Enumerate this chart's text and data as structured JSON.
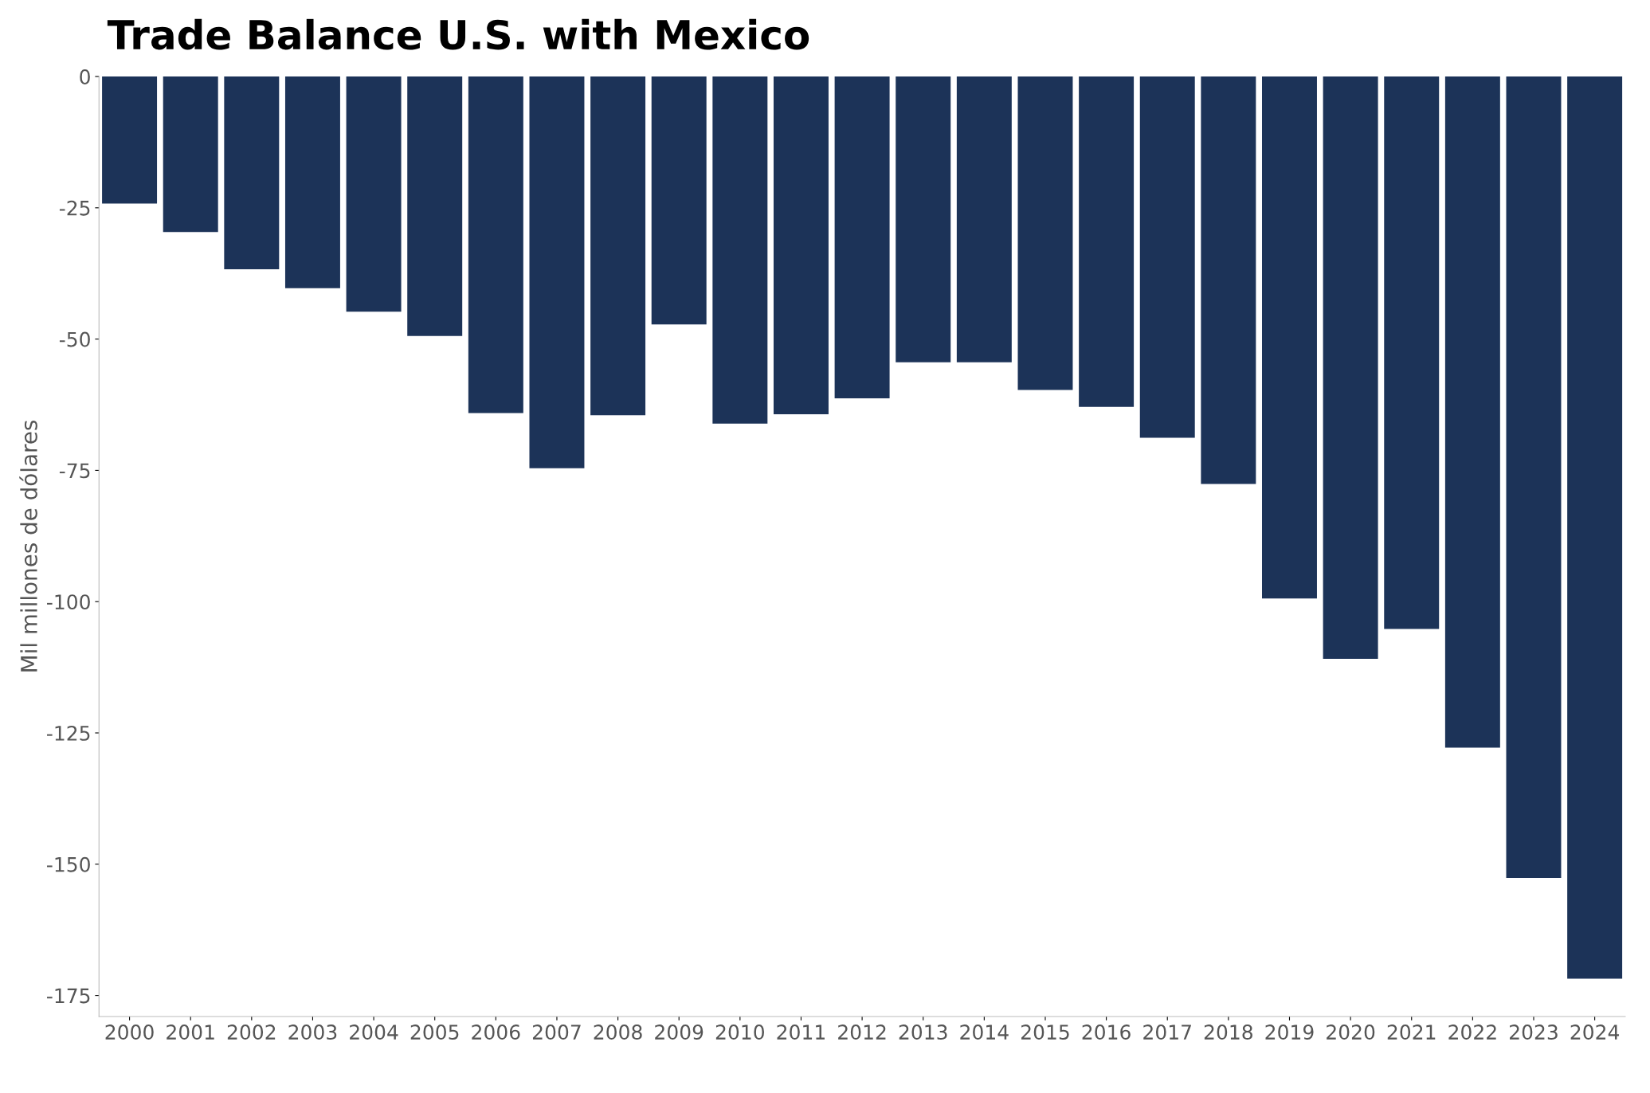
{
  "chart_data": {
    "type": "bar",
    "title": "Trade Balance U.S. with Mexico",
    "ylabel": "Mil millones de dólares",
    "categories": [
      "2000",
      "2001",
      "2002",
      "2003",
      "2004",
      "2005",
      "2006",
      "2007",
      "2008",
      "2009",
      "2010",
      "2011",
      "2012",
      "2013",
      "2014",
      "2015",
      "2016",
      "2017",
      "2018",
      "2019",
      "2020",
      "2021",
      "2022",
      "2023",
      "2024"
    ],
    "values": [
      -24.2,
      -29.6,
      -36.7,
      -40.3,
      -44.8,
      -49.4,
      -64.1,
      -74.6,
      -64.5,
      -47.2,
      -66.1,
      -64.3,
      -61.3,
      -54.4,
      -54.4,
      -59.7,
      -62.9,
      -68.8,
      -77.6,
      -99.4,
      -110.9,
      -105.2,
      -127.8,
      -152.6,
      -171.8
    ],
    "color": "#1c3358",
    "ylim": [
      -179,
      0
    ],
    "yticks": [
      0,
      -25,
      -50,
      -75,
      -100,
      -125,
      -150,
      -175
    ],
    "grid": false
  }
}
